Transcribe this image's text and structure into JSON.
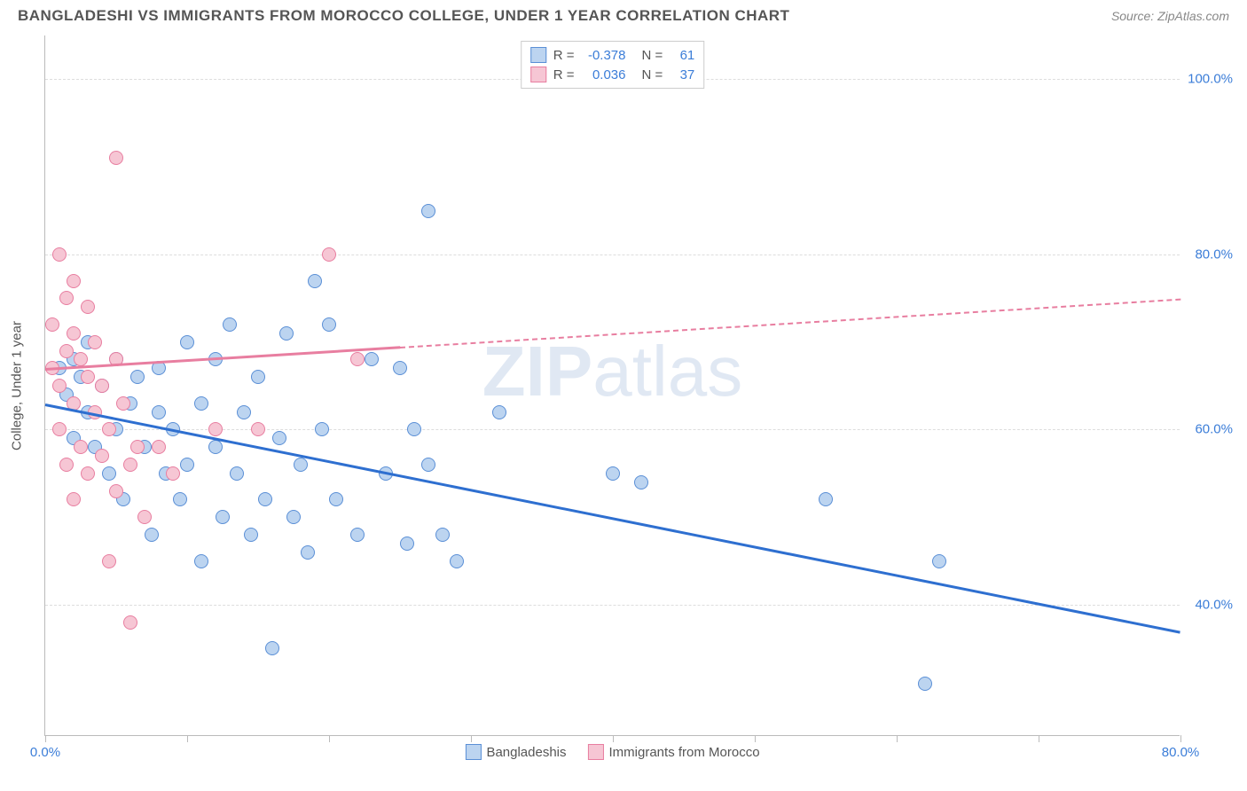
{
  "title": "BANGLADESHI VS IMMIGRANTS FROM MOROCCO COLLEGE, UNDER 1 YEAR CORRELATION CHART",
  "source_label": "Source: ZipAtlas.com",
  "watermark_zip": "ZIP",
  "watermark_atlas": "atlas",
  "ylabel": "College, Under 1 year",
  "chart": {
    "type": "scatter",
    "xlim": [
      0,
      80
    ],
    "ylim": [
      25,
      105
    ],
    "xticks": [
      0,
      10,
      20,
      30,
      40,
      50,
      60,
      70,
      80
    ],
    "xtick_labels": {
      "0": "0.0%",
      "80": "80.0%"
    },
    "yticks": [
      40,
      60,
      80,
      100
    ],
    "ytick_labels": {
      "40": "40.0%",
      "60": "60.0%",
      "80": "80.0%",
      "100": "100.0%"
    },
    "background_color": "#ffffff",
    "grid_color": "#dddddd",
    "axis_color": "#bbbbbb",
    "tick_label_color": "#3b7dd8",
    "series": [
      {
        "name": "Bangladeshis",
        "fill": "#bcd4f0",
        "stroke": "#5a8fd6",
        "line_color": "#2e6fd0",
        "R": "-0.378",
        "N": "61",
        "trend": {
          "x1": 0,
          "y1": 63,
          "x2": 80,
          "y2": 37,
          "solid_until_x": 80
        },
        "points": [
          [
            1,
            67
          ],
          [
            1.5,
            64
          ],
          [
            2,
            68
          ],
          [
            2,
            59
          ],
          [
            2.5,
            66
          ],
          [
            3,
            70
          ],
          [
            3,
            62
          ],
          [
            3.5,
            58
          ],
          [
            4,
            65
          ],
          [
            4.5,
            55
          ],
          [
            5,
            68
          ],
          [
            5,
            60
          ],
          [
            5.5,
            52
          ],
          [
            6,
            63
          ],
          [
            6.5,
            66
          ],
          [
            7,
            58
          ],
          [
            7.5,
            48
          ],
          [
            8,
            62
          ],
          [
            8,
            67
          ],
          [
            8.5,
            55
          ],
          [
            9,
            60
          ],
          [
            9.5,
            52
          ],
          [
            10,
            70
          ],
          [
            10,
            56
          ],
          [
            11,
            63
          ],
          [
            11,
            45
          ],
          [
            12,
            68
          ],
          [
            12,
            58
          ],
          [
            12.5,
            50
          ],
          [
            13,
            72
          ],
          [
            13.5,
            55
          ],
          [
            14,
            62
          ],
          [
            14.5,
            48
          ],
          [
            15,
            66
          ],
          [
            15.5,
            52
          ],
          [
            16,
            35
          ],
          [
            16.5,
            59
          ],
          [
            17,
            71
          ],
          [
            17.5,
            50
          ],
          [
            18,
            56
          ],
          [
            18.5,
            46
          ],
          [
            19,
            77
          ],
          [
            19.5,
            60
          ],
          [
            20,
            72
          ],
          [
            20.5,
            52
          ],
          [
            22,
            48
          ],
          [
            23,
            68
          ],
          [
            24,
            55
          ],
          [
            25,
            67
          ],
          [
            25.5,
            47
          ],
          [
            26,
            60
          ],
          [
            27,
            85
          ],
          [
            27,
            56
          ],
          [
            28,
            48
          ],
          [
            29,
            45
          ],
          [
            32,
            62
          ],
          [
            40,
            55
          ],
          [
            42,
            54
          ],
          [
            55,
            52
          ],
          [
            62,
            31
          ],
          [
            63,
            45
          ]
        ]
      },
      {
        "name": "Immigrants from Morocco",
        "fill": "#f6c6d4",
        "stroke": "#e87ea0",
        "line_color": "#e87ea0",
        "R": "0.036",
        "N": "37",
        "trend": {
          "x1": 0,
          "y1": 67,
          "x2": 80,
          "y2": 75,
          "solid_until_x": 25
        },
        "points": [
          [
            0.5,
            67
          ],
          [
            0.5,
            72
          ],
          [
            1,
            80
          ],
          [
            1,
            65
          ],
          [
            1,
            60
          ],
          [
            1.5,
            75
          ],
          [
            1.5,
            69
          ],
          [
            1.5,
            56
          ],
          [
            2,
            77
          ],
          [
            2,
            71
          ],
          [
            2,
            63
          ],
          [
            2,
            52
          ],
          [
            2.5,
            68
          ],
          [
            2.5,
            58
          ],
          [
            3,
            74
          ],
          [
            3,
            66
          ],
          [
            3,
            55
          ],
          [
            3.5,
            70
          ],
          [
            3.5,
            62
          ],
          [
            4,
            65
          ],
          [
            4,
            57
          ],
          [
            4.5,
            60
          ],
          [
            4.5,
            45
          ],
          [
            5,
            68
          ],
          [
            5,
            53
          ],
          [
            5.5,
            63
          ],
          [
            6,
            56
          ],
          [
            6,
            38
          ],
          [
            6.5,
            58
          ],
          [
            7,
            50
          ],
          [
            5,
            91
          ],
          [
            8,
            58
          ],
          [
            9,
            55
          ],
          [
            12,
            60
          ],
          [
            15,
            60
          ],
          [
            20,
            80
          ],
          [
            22,
            68
          ]
        ]
      }
    ]
  },
  "legend": {
    "series1_label": "Bangladeshis",
    "series2_label": "Immigrants from Morocco"
  },
  "stats_box": {
    "R_label": "R =",
    "N_label": "N ="
  }
}
